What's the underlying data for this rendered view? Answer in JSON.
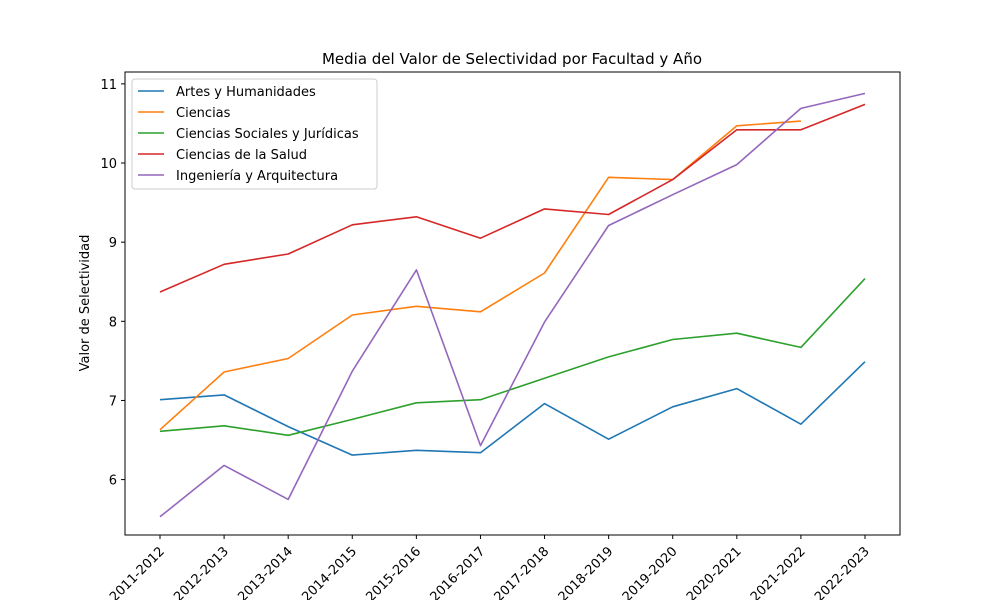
{
  "chart_data": {
    "type": "line",
    "title": "Media del Valor de Selectividad por Facultad y Año",
    "xlabel": "",
    "ylabel": "Valor de Selectividad",
    "categories": [
      "2011-2012",
      "2012-2013",
      "2013-2014",
      "2014-2015",
      "2015-2016",
      "2016-2017",
      "2017-2018",
      "2018-2019",
      "2019-2020",
      "2020-2021",
      "2021-2022",
      "2022-2023"
    ],
    "yticks": [
      6,
      7,
      8,
      9,
      10,
      11
    ],
    "ylim": [
      5.3,
      11.15
    ],
    "grid": false,
    "legend_position": "upper-left",
    "series": [
      {
        "name": "Artes y Humanidades",
        "color": "#1f77b4",
        "values": [
          7.01,
          7.07,
          6.67,
          6.31,
          6.37,
          6.34,
          6.96,
          6.51,
          6.92,
          7.15,
          6.7,
          7.49
        ]
      },
      {
        "name": "Ciencias",
        "color": "#ff7f0e",
        "values": [
          6.63,
          7.36,
          7.53,
          8.08,
          8.19,
          8.12,
          8.61,
          9.82,
          9.79,
          10.47,
          10.53,
          null
        ]
      },
      {
        "name": "Ciencias Sociales y Jurídicas",
        "color": "#2ca02c",
        "values": [
          6.61,
          6.68,
          6.56,
          6.76,
          6.97,
          7.01,
          7.28,
          7.55,
          7.77,
          7.85,
          7.67,
          8.54
        ]
      },
      {
        "name": "Ciencias de la Salud",
        "color": "#d62728",
        "values": [
          8.37,
          8.72,
          8.85,
          9.22,
          9.32,
          9.05,
          9.42,
          9.35,
          9.79,
          10.42,
          10.42,
          10.74
        ]
      },
      {
        "name": "Ingeniería y Arquitectura",
        "color": "#9467bd",
        "values": [
          5.53,
          6.18,
          5.75,
          7.37,
          8.65,
          6.43,
          7.99,
          9.21,
          9.6,
          9.98,
          10.69,
          10.88
        ]
      }
    ]
  }
}
